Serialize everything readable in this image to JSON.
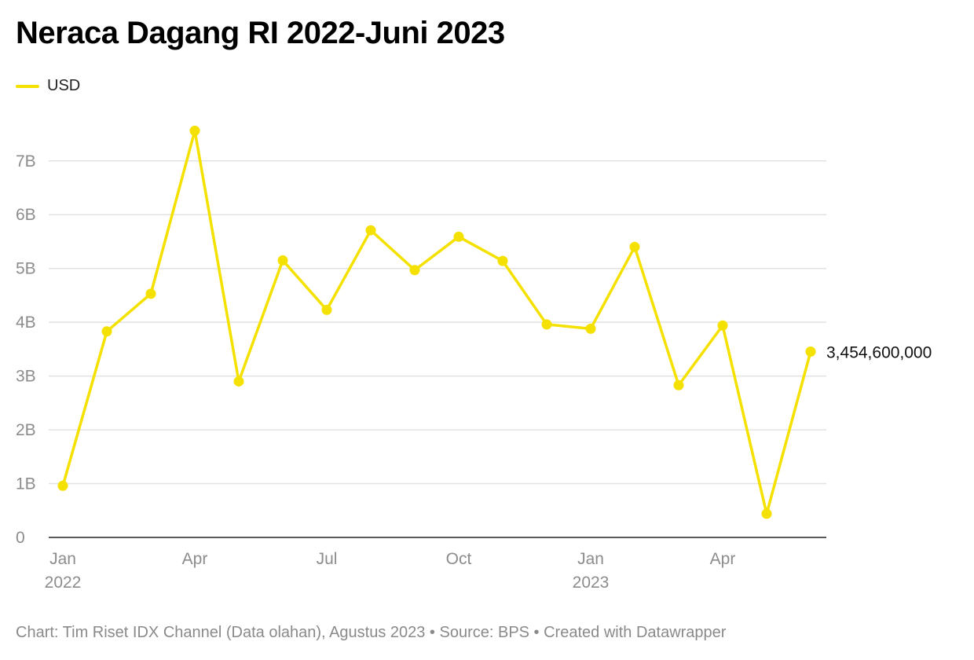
{
  "title": "Neraca Dagang RI 2022-Juni 2023",
  "legend": {
    "label": "USD",
    "color": "#f5e100"
  },
  "footer": "Chart: Tim Riset IDX Channel (Data olahan), Agustus 2023 • Source: BPS • Created with Datawrapper",
  "chart_data": {
    "type": "line",
    "title": "Neraca Dagang RI 2022-Juni 2023",
    "series": [
      {
        "name": "USD",
        "color": "#f5e100",
        "x": [
          "2022-01",
          "2022-02",
          "2022-03",
          "2022-04",
          "2022-05",
          "2022-06",
          "2022-07",
          "2022-08",
          "2022-09",
          "2022-10",
          "2022-11",
          "2022-12",
          "2023-01",
          "2023-02",
          "2023-03",
          "2023-04",
          "2023-05",
          "2023-06"
        ],
        "values": [
          960000000,
          3830000000,
          4530000000,
          7560000000,
          2900000000,
          5150000000,
          4230000000,
          5710000000,
          4970000000,
          5590000000,
          5140000000,
          3960000000,
          3880000000,
          5400000000,
          2830000000,
          3940000000,
          440000000,
          3454600000
        ]
      }
    ],
    "ylim": [
      0,
      7800000000
    ],
    "yticks": [
      {
        "value": 0,
        "label": "0"
      },
      {
        "value": 1000000000,
        "label": "1B"
      },
      {
        "value": 2000000000,
        "label": "2B"
      },
      {
        "value": 3000000000,
        "label": "3B"
      },
      {
        "value": 4000000000,
        "label": "4B"
      },
      {
        "value": 5000000000,
        "label": "5B"
      },
      {
        "value": 6000000000,
        "label": "6B"
      },
      {
        "value": 7000000000,
        "label": "7B"
      }
    ],
    "xticks": [
      {
        "index": 0,
        "label": "Jan",
        "sublabel": "2022"
      },
      {
        "index": 3,
        "label": "Apr",
        "sublabel": ""
      },
      {
        "index": 6,
        "label": "Jul",
        "sublabel": ""
      },
      {
        "index": 9,
        "label": "Oct",
        "sublabel": ""
      },
      {
        "index": 12,
        "label": "Jan",
        "sublabel": "2023"
      },
      {
        "index": 15,
        "label": "Apr",
        "sublabel": ""
      }
    ],
    "end_label": "3,454,600,000",
    "grid": true,
    "grid_color": "#e2e2e2",
    "axis_color": "#222222",
    "tick_label_color": "#8c8c8c"
  }
}
